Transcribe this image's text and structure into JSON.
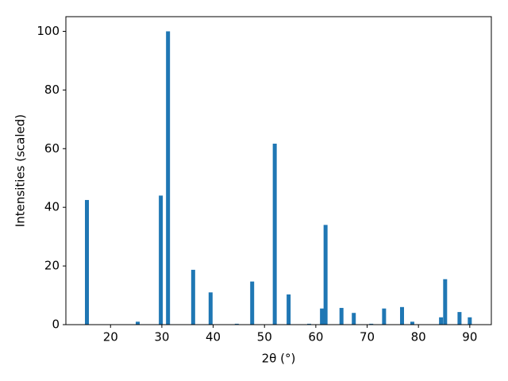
{
  "chart_data": {
    "type": "bar",
    "x_label": "2θ (°)",
    "y_label": "Intensities (scaled)",
    "x": [
      15.4,
      25.3,
      29.8,
      31.2,
      36.1,
      39.5,
      44.6,
      47.6,
      52.0,
      54.7,
      58.7,
      61.2,
      61.9,
      65.0,
      67.4,
      70.8,
      73.3,
      76.8,
      78.8,
      84.4,
      85.2,
      88.0,
      90.0
    ],
    "values": [
      42.5,
      1,
      44,
      100,
      18.7,
      11,
      0.3,
      14.7,
      61.7,
      10.3,
      0.3,
      5.5,
      34,
      5.7,
      4,
      0.3,
      5.5,
      6,
      1,
      2.5,
      15.5,
      4.3,
      2.5
    ],
    "color": "#1f77b4",
    "xlim": [
      11.3,
      94.2
    ],
    "xticks": [
      20,
      30,
      40,
      50,
      60,
      70,
      80,
      90
    ],
    "ylim": [
      0,
      105
    ],
    "yticks": [
      0,
      20,
      40,
      60,
      80,
      100
    ],
    "grid": false
  }
}
